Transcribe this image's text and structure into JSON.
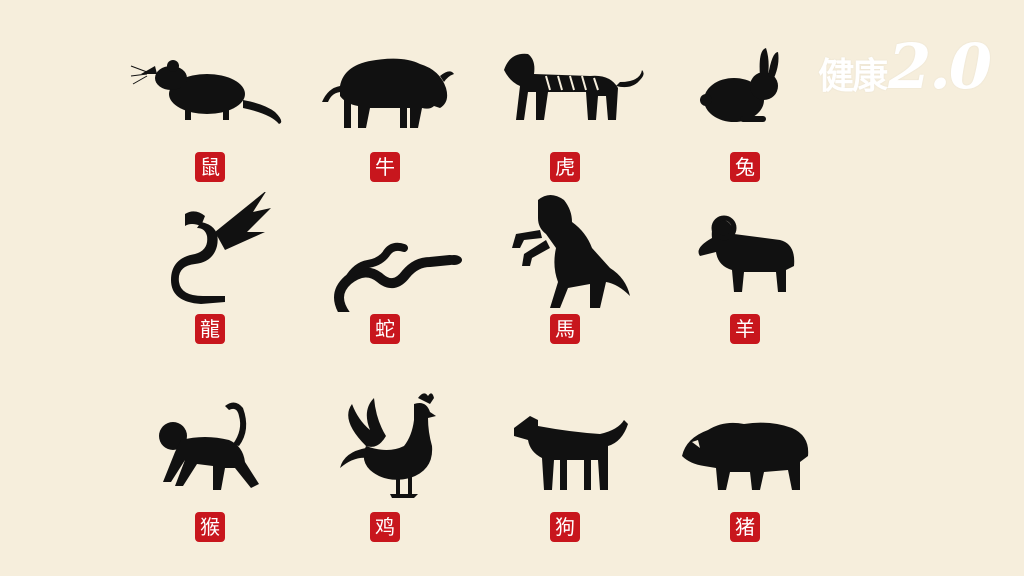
{
  "logo": {
    "name": "健康",
    "version": "2.0"
  },
  "colors": {
    "background": "#f6eedc",
    "silhouette": "#111111",
    "seal": "#c8161d",
    "seal_text": "#ffffff"
  },
  "zodiac": [
    {
      "animal": "rat",
      "label": "鼠"
    },
    {
      "animal": "ox",
      "label": "牛"
    },
    {
      "animal": "tiger",
      "label": "虎"
    },
    {
      "animal": "rabbit",
      "label": "兔"
    },
    {
      "animal": "dragon",
      "label": "龍"
    },
    {
      "animal": "snake",
      "label": "蛇"
    },
    {
      "animal": "horse",
      "label": "馬"
    },
    {
      "animal": "goat",
      "label": "羊"
    },
    {
      "animal": "monkey",
      "label": "猴"
    },
    {
      "animal": "rooster",
      "label": "鸡"
    },
    {
      "animal": "dog",
      "label": "狗"
    },
    {
      "animal": "pig",
      "label": "猪"
    }
  ]
}
